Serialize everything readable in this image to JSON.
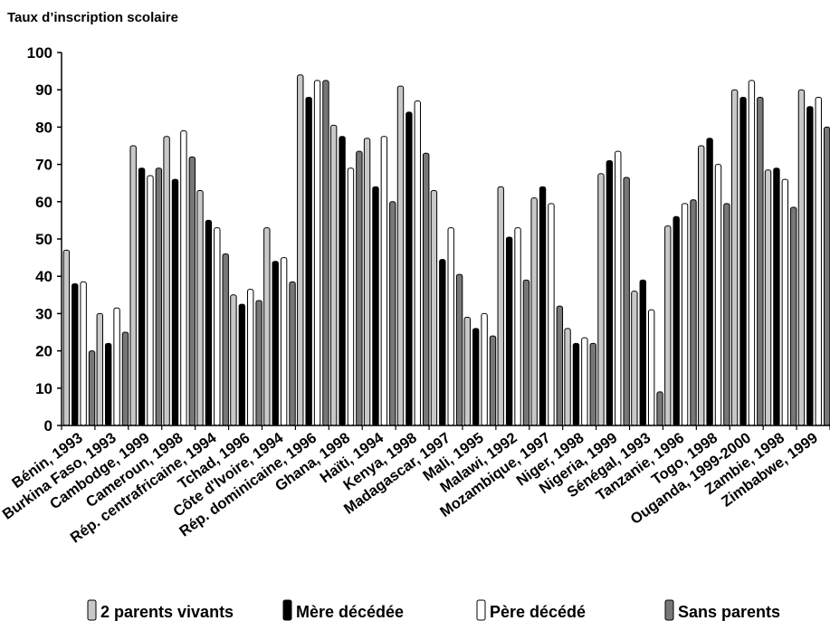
{
  "chart_data": {
    "type": "bar",
    "title": "",
    "ylabel": "Taux d’inscription scolaire",
    "xlabel": "",
    "ylim": [
      0,
      100
    ],
    "yticks": [
      0,
      10,
      20,
      30,
      40,
      50,
      60,
      70,
      80,
      90,
      100
    ],
    "grid": false,
    "legend_position": "bottom",
    "categories": [
      "Bénin, 1993",
      "Burkina Faso, 1993",
      "Cambodge, 1999",
      "Cameroun, 1998",
      "Rép. centrafricaine, 1994",
      "Tchad, 1996",
      "Côte d'Ivoire, 1994",
      "Rép. dominicaine, 1996",
      "Ghana, 1998",
      "Haïti, 1994",
      "Kenya, 1998",
      "Madagascar, 1997",
      "Mali, 1995",
      "Malawi, 1992",
      "Mozambique, 1997",
      "Niger, 1998",
      "Nigeria, 1999",
      "Sénégal, 1993",
      "Tanzanie, 1996",
      "Togo, 1998",
      "Ouganda, 1999-2000",
      "Zambie, 1998",
      "Zimbabwe, 1999"
    ],
    "series": [
      {
        "name": "2 parents vivants",
        "color": "#c8c8c8",
        "values": [
          47,
          30,
          75,
          77.5,
          63,
          35,
          53,
          94,
          80.5,
          77,
          91,
          63,
          29,
          64,
          61,
          26,
          67.5,
          36,
          53.5,
          75,
          90,
          68.5,
          90
        ]
      },
      {
        "name": "Mère décédée",
        "color": "#000000",
        "values": [
          38,
          22,
          69,
          66,
          55,
          32.5,
          44,
          88,
          77.5,
          64,
          84,
          44.5,
          26,
          50.5,
          64,
          22,
          71,
          39,
          56,
          77,
          88,
          69,
          85.5
        ]
      },
      {
        "name": "Père décédé",
        "color": "#ffffff",
        "values": [
          38.5,
          31.5,
          67,
          79,
          53,
          36.5,
          45,
          92.5,
          69,
          77.5,
          87,
          53,
          30,
          53,
          59.5,
          23.5,
          73.5,
          31,
          59.5,
          70,
          92.5,
          66,
          88
        ]
      },
      {
        "name": "Sans parents",
        "color": "#777777",
        "values": [
          20,
          25,
          69,
          72,
          46,
          33.5,
          38.5,
          92.5,
          73.5,
          60,
          73,
          40.5,
          24,
          39,
          32,
          22,
          66.5,
          9,
          60.5,
          59.5,
          88,
          58.5,
          80
        ]
      }
    ]
  }
}
